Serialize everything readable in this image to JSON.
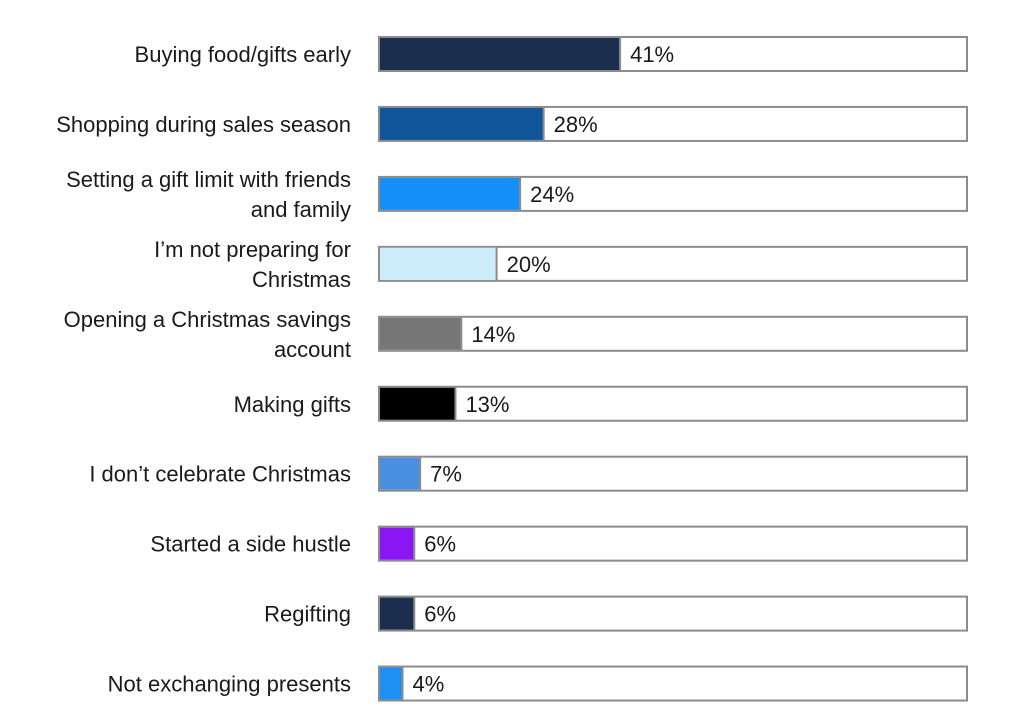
{
  "chart_data": {
    "type": "bar",
    "orientation": "horizontal",
    "title": "",
    "xlabel": "",
    "ylabel": "",
    "xlim": [
      0,
      100
    ],
    "grid": false,
    "legend": "none",
    "categories": [
      [
        "Buying food/gifts early"
      ],
      [
        "Shopping during sales season"
      ],
      [
        "Setting a gift limit with friends",
        "and family"
      ],
      [
        "I’m not preparing for",
        "Christmas"
      ],
      [
        "Opening a Christmas savings",
        "account"
      ],
      [
        "Making gifts"
      ],
      [
        "I don’t celebrate Christmas"
      ],
      [
        "Started a side hustle"
      ],
      [
        "Regifting"
      ],
      [
        "Not exchanging presents"
      ]
    ],
    "values": [
      41,
      28,
      24,
      20,
      14,
      13,
      7,
      6,
      6,
      4
    ],
    "value_labels": [
      "41%",
      "28%",
      "24%",
      "20%",
      "14%",
      "13%",
      "7%",
      "6%",
      "6%",
      "4%"
    ],
    "colors": [
      "#1b2e4f",
      "#105598",
      "#1590f8",
      "#cdecfb",
      "#767676",
      "#000000",
      "#4a90e0",
      "#8b16f4",
      "#1b2e4f",
      "#1e90f4"
    ]
  }
}
